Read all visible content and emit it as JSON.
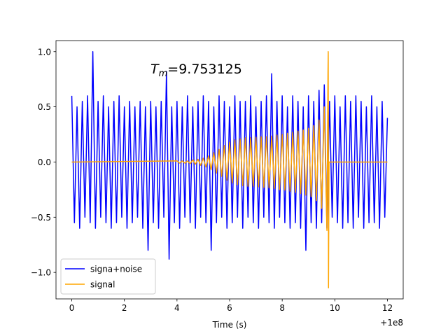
{
  "chart_data": {
    "type": "line",
    "xlabel": "Time (s)",
    "x_offset_label": "+1e8",
    "annotation": {
      "symbol": "T",
      "subscript": "m",
      "text": "=9.753125"
    },
    "xlim": [
      -0.6,
      12.6
    ],
    "ylim": [
      -1.24,
      1.1
    ],
    "xticks": [
      0,
      2,
      4,
      6,
      8,
      10,
      12
    ],
    "yticks": [
      {
        "value": -1.0,
        "label": "−1.0"
      },
      {
        "value": -0.5,
        "label": "−0.5"
      },
      {
        "value": 0.0,
        "label": "0.0"
      },
      {
        "value": 0.5,
        "label": "0.5"
      },
      {
        "value": 1.0,
        "label": "1.0"
      }
    ],
    "grid": false,
    "legend": "lower left",
    "series": [
      {
        "name": "signa+noise",
        "color": "#0000ff",
        "x": [
          0.0,
          0.1,
          0.2,
          0.3,
          0.4,
          0.5,
          0.6,
          0.7,
          0.8,
          0.9,
          1.0,
          1.1,
          1.2,
          1.3,
          1.4,
          1.5,
          1.6,
          1.7,
          1.8,
          1.9,
          2.0,
          2.1,
          2.2,
          2.3,
          2.4,
          2.5,
          2.6,
          2.7,
          2.8,
          2.9,
          3.0,
          3.1,
          3.2,
          3.3,
          3.4,
          3.5,
          3.6,
          3.7,
          3.8,
          3.9,
          4.0,
          4.1,
          4.2,
          4.3,
          4.4,
          4.5,
          4.6,
          4.7,
          4.8,
          4.9,
          5.0,
          5.1,
          5.2,
          5.3,
          5.4,
          5.5,
          5.6,
          5.7,
          5.8,
          5.9,
          6.0,
          6.1,
          6.2,
          6.3,
          6.4,
          6.5,
          6.6,
          6.7,
          6.8,
          6.9,
          7.0,
          7.1,
          7.2,
          7.3,
          7.4,
          7.5,
          7.6,
          7.7,
          7.8,
          7.9,
          8.0,
          8.1,
          8.2,
          8.3,
          8.4,
          8.5,
          8.6,
          8.7,
          8.8,
          8.9,
          9.0,
          9.1,
          9.2,
          9.3,
          9.4,
          9.5,
          9.6,
          9.7,
          9.8,
          9.9,
          10.0,
          10.1,
          10.2,
          10.3,
          10.4,
          10.5,
          10.6,
          10.7,
          10.8,
          10.9,
          11.0,
          11.1,
          11.2,
          11.3,
          11.4,
          11.5,
          11.6,
          11.7,
          11.8,
          11.9,
          12.0
        ],
        "values": [
          0.6,
          -0.55,
          0.5,
          -0.6,
          0.55,
          -0.5,
          0.6,
          -0.55,
          1.0,
          -0.6,
          0.55,
          -0.5,
          0.6,
          -0.55,
          0.5,
          -0.6,
          0.55,
          -0.55,
          0.6,
          -0.5,
          0.5,
          -0.6,
          0.55,
          -0.55,
          0.5,
          -0.5,
          0.55,
          -0.6,
          0.5,
          -0.8,
          0.55,
          -0.55,
          0.5,
          -0.6,
          0.55,
          -0.5,
          0.82,
          -0.88,
          0.5,
          -0.55,
          0.55,
          -0.6,
          0.5,
          -0.5,
          0.6,
          -0.55,
          0.5,
          -0.6,
          0.55,
          -0.5,
          0.6,
          -0.55,
          0.55,
          -0.8,
          0.5,
          -0.55,
          0.6,
          -0.5,
          0.55,
          -0.6,
          0.5,
          -0.55,
          0.6,
          -0.5,
          0.55,
          -0.6,
          0.55,
          -0.5,
          0.6,
          -0.55,
          0.5,
          -0.6,
          0.55,
          -0.5,
          0.6,
          -0.55,
          0.8,
          -0.6,
          0.55,
          -0.5,
          0.6,
          -0.55,
          0.5,
          -0.6,
          0.6,
          -0.55,
          0.55,
          -0.6,
          0.5,
          -0.8,
          0.6,
          -0.55,
          0.55,
          -0.6,
          0.65,
          -0.55,
          0.7,
          -0.6,
          0.55,
          -0.5,
          0.6,
          -0.55,
          0.5,
          -0.6,
          0.6,
          -0.55,
          0.55,
          -0.6,
          0.6,
          -0.5,
          0.55,
          -0.6,
          0.5,
          -0.55,
          0.6,
          -0.55,
          0.5,
          -0.6,
          0.55,
          -0.5,
          0.4
        ]
      },
      {
        "name": "signal",
        "color": "#ffa500",
        "x": [
          0.0,
          4.0,
          4.1,
          4.2,
          4.3,
          4.4,
          4.5,
          4.6,
          4.7,
          4.8,
          4.9,
          5.0,
          5.1,
          5.2,
          5.3,
          5.4,
          5.5,
          5.6,
          5.7,
          5.8,
          5.9,
          6.0,
          6.1,
          6.2,
          6.3,
          6.4,
          6.5,
          6.6,
          6.7,
          6.8,
          6.9,
          7.0,
          7.1,
          7.2,
          7.3,
          7.4,
          7.5,
          7.6,
          7.7,
          7.8,
          7.9,
          8.0,
          8.1,
          8.2,
          8.3,
          8.4,
          8.5,
          8.6,
          8.7,
          8.8,
          8.9,
          9.0,
          9.1,
          9.2,
          9.3,
          9.4,
          9.5,
          9.6,
          9.7,
          9.74,
          9.75,
          9.76,
          9.78,
          12.0
        ],
        "values": [
          0.0,
          0.01,
          -0.01,
          0.01,
          -0.01,
          0.01,
          -0.015,
          0.02,
          -0.02,
          0.025,
          -0.03,
          0.035,
          -0.045,
          0.055,
          -0.07,
          0.085,
          -0.1,
          0.115,
          -0.13,
          0.15,
          -0.165,
          0.18,
          -0.19,
          0.2,
          -0.205,
          0.21,
          -0.215,
          0.22,
          -0.22,
          0.22,
          -0.22,
          0.225,
          -0.225,
          0.23,
          -0.23,
          0.23,
          -0.235,
          0.235,
          -0.24,
          0.245,
          -0.25,
          0.25,
          -0.255,
          0.26,
          -0.265,
          0.27,
          -0.275,
          0.28,
          -0.285,
          0.29,
          -0.3,
          0.305,
          -0.315,
          0.33,
          -0.35,
          0.38,
          -0.42,
          0.5,
          -0.62,
          0.8,
          1.0,
          -1.14,
          0.0,
          0.0
        ]
      }
    ]
  }
}
